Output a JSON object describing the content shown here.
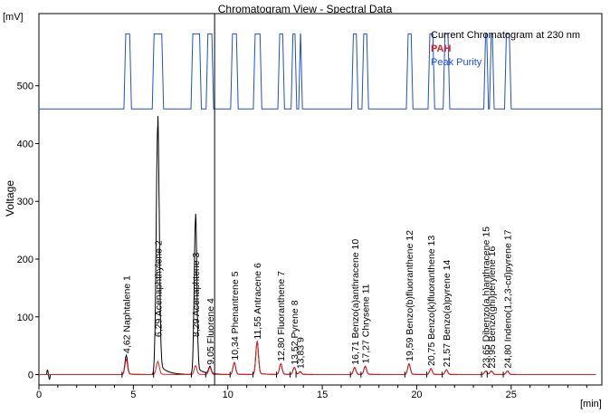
{
  "window": {
    "title": "Chromatogram View - Spectral Data"
  },
  "axis_units": {
    "y_unit": "[mV]",
    "x_unit": "[min]"
  },
  "legend": [
    {
      "name": "Current Chromatogram at 230 nm",
      "color": "#000000",
      "bold": false
    },
    {
      "name": "PAH",
      "color": "#e02020",
      "bold": true
    },
    {
      "name": "Peak Purity",
      "color": "#2050c8",
      "bold": false
    }
  ],
  "chart_data": {
    "type": "line",
    "title": "Chromatogram View - Spectral Data",
    "xlabel": "",
    "ylabel": "Voltage",
    "x_unit": "[min]",
    "y_unit": "[mV]",
    "xlim": [
      0,
      29.8
    ],
    "ylim": [
      -18,
      625
    ],
    "x_ticks": [
      0,
      5,
      10,
      15,
      20,
      25
    ],
    "y_ticks": [
      0,
      100,
      200,
      300,
      400,
      500
    ],
    "grid": false,
    "legend_position": "top-right",
    "cursor_x": 9.3,
    "purity_baseline": 460,
    "purity_top": 590,
    "series": [
      {
        "name": "Current Chromatogram at 230 nm",
        "color": "#000000"
      },
      {
        "name": "PAH",
        "color": "#e02020"
      },
      {
        "name": "Peak Purity",
        "color": "#2050c8"
      }
    ],
    "peaks": [
      {
        "label": "4,62 Naphtalene  1",
        "rt": 4.62,
        "height_230": 32,
        "height_pah": 25,
        "width": 0.07
      },
      {
        "label": "6,29 Acenaphthylene  2",
        "rt": 6.29,
        "height_230": 430,
        "height_pah": 22,
        "width": 0.08
      },
      {
        "label": "8,29 Acenaphtene  3",
        "rt": 8.29,
        "height_230": 268,
        "height_pah": 15,
        "width": 0.07
      },
      {
        "label": "9,05 Fluorene  4",
        "rt": 9.05,
        "height_230": 12,
        "height_pah": 12,
        "width": 0.07
      },
      {
        "label": "10,34 Phenantrene  5",
        "rt": 10.34,
        "height_230": 20,
        "height_pah": 20,
        "width": 0.07
      },
      {
        "label": "11,55 Antracene  6",
        "rt": 11.55,
        "height_230": 56,
        "height_pah": 56,
        "width": 0.07
      },
      {
        "label": "12,80 Fluoranthene  7",
        "rt": 12.8,
        "height_230": 18,
        "height_pah": 18,
        "width": 0.07
      },
      {
        "label": "13,52 Pyrene  8",
        "rt": 13.52,
        "height_230": 12,
        "height_pah": 12,
        "width": 0.07
      },
      {
        "label": "13,83  9",
        "rt": 13.83,
        "height_230": 5,
        "height_pah": 5,
        "width": 0.06
      },
      {
        "label": "16,71 Benzo(a)anthracene  10",
        "rt": 16.71,
        "height_230": 12,
        "height_pah": 12,
        "width": 0.07
      },
      {
        "label": "17,27 Chrysene  11",
        "rt": 17.27,
        "height_230": 14,
        "height_pah": 14,
        "width": 0.07
      },
      {
        "label": "19,59 Benzo(b)fluoranthene  12",
        "rt": 19.59,
        "height_230": 18,
        "height_pah": 18,
        "width": 0.07
      },
      {
        "label": "20,75 Benzo(k)fluoranthene  13",
        "rt": 20.75,
        "height_230": 10,
        "height_pah": 10,
        "width": 0.07
      },
      {
        "label": "21,57 Benzo(a)pyrene  14",
        "rt": 21.57,
        "height_230": 8,
        "height_pah": 8,
        "width": 0.07
      },
      {
        "label": "23,65 Dibenzo(a,h)anthracene  15",
        "rt": 23.65,
        "height_230": 6,
        "height_pah": 6,
        "width": 0.07
      },
      {
        "label": "23,95 Benzo(ghi)perylene  16",
        "rt": 23.95,
        "height_230": 6,
        "height_pah": 6,
        "width": 0.07
      },
      {
        "label": "24,80 Indeno(1,2,3-cd)pyrene  17",
        "rt": 24.8,
        "height_230": 6,
        "height_pah": 6,
        "width": 0.07
      }
    ],
    "purity_windows": [
      [
        4.5,
        4.9
      ],
      [
        6.0,
        6.6
      ],
      [
        8.05,
        8.6
      ],
      [
        8.85,
        9.25
      ],
      [
        10.15,
        10.55
      ],
      [
        11.35,
        11.8
      ],
      [
        12.65,
        13.0
      ],
      [
        13.35,
        13.65
      ],
      [
        13.75,
        13.95
      ],
      [
        16.55,
        16.9
      ],
      [
        17.1,
        17.45
      ],
      [
        19.45,
        19.8
      ],
      [
        20.6,
        20.95
      ],
      [
        21.4,
        21.75
      ],
      [
        23.55,
        23.8
      ],
      [
        23.85,
        24.1
      ],
      [
        24.65,
        25.0
      ]
    ]
  }
}
